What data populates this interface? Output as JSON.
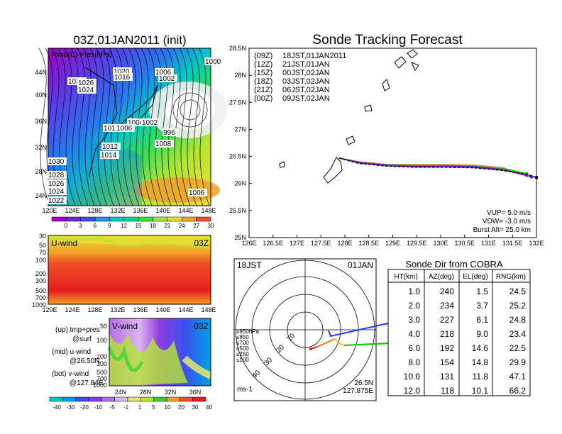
{
  "init_panel": {
    "title": "03Z,01JAN2011 (init)",
    "field_label": "Temp(C)-Pres(hPa)",
    "lat_labels": [
      "44N",
      "40N",
      "36N",
      "32N",
      "28N",
      "24N"
    ],
    "lon_labels": [
      "120E",
      "124E",
      "128E",
      "132E",
      "136E",
      "140E",
      "144E",
      "148E"
    ],
    "isobar_labels": [
      "1020",
      "1016",
      "1030",
      "1026",
      "1024",
      "1006",
      "1002",
      "1000",
      "1004",
      "1002",
      "1010",
      "1006",
      "1012",
      "996",
      "1008",
      "1014",
      "1030",
      "1028",
      "1026",
      "1024",
      "1022",
      "1006"
    ],
    "colorbar": [
      "0",
      "3",
      "6",
      "9",
      "12",
      "15",
      "18",
      "21",
      "24",
      "27",
      "30"
    ],
    "temp_colors": [
      "#a000c8",
      "#6e28dc",
      "#3c50f0",
      "#1e96f0",
      "#00c8c8",
      "#00dc8c",
      "#32e632",
      "#a0e632",
      "#e6dc32",
      "#f0a028",
      "#f05028"
    ]
  },
  "uwind_panel": {
    "title": "U-wind",
    "time": "03Z",
    "pres_labels": [
      "30",
      "50",
      "70",
      "100",
      "200",
      "300",
      "500",
      "700",
      "1000"
    ],
    "lon_labels": [
      "120E",
      "124E",
      "128E",
      "132E",
      "136E",
      "140E",
      "144E",
      "148E"
    ]
  },
  "vwind_panel": {
    "title": "V-wind",
    "time": "03Z",
    "pres_labels": [
      "50",
      "100",
      "200",
      "300",
      "500",
      "700",
      "1000"
    ],
    "lat_labels": [
      "24N",
      "28N",
      "32N",
      "36N"
    ]
  },
  "legend_notes": {
    "up": "(up) tmp+pres",
    "up2": "@surf",
    "mid": "(mid) u-wind",
    "mid2": "@26.50N",
    "bot": "(bot) v-wind",
    "bot2": "@127.84E"
  },
  "wind_colorbar": [
    "-40",
    "-30",
    "-20",
    "-10",
    "-5",
    "-1",
    "1",
    "5",
    "10",
    "20",
    "30",
    "40"
  ],
  "wind_colors": [
    "#00c8c8",
    "#00a0e6",
    "#3c50f0",
    "#8c3cdc",
    "#b46ee6",
    "#dcb4f0",
    "#e6e66e",
    "#b4e632",
    "#32d232",
    "#f0a028",
    "#f05028",
    "#e61e1e"
  ],
  "track_panel": {
    "title": "Sonde Tracking Forecast",
    "lat_labels": [
      "28.5N",
      "28N",
      "27.5N",
      "27N",
      "26.5N",
      "26N",
      "25.5N",
      "25N"
    ],
    "lon_labels": [
      "126E",
      "126.5E",
      "127E",
      "127.5E",
      "128E",
      "128.5E",
      "129E",
      "129.5E",
      "130E",
      "130.5E",
      "131E",
      "131.5E",
      "132E"
    ],
    "runs": [
      {
        "code": "(09Z)",
        "label": "18JST,01JAN2011",
        "color": "#000000"
      },
      {
        "code": "(12Z)",
        "label": "21JST,01JAN",
        "color": "#a000c8"
      },
      {
        "code": "(15Z)",
        "label": "00JST,02JAN",
        "color": "#1e3cff"
      },
      {
        "code": "(18Z)",
        "label": "03JST,02JAN",
        "color": "#00c800"
      },
      {
        "code": "(21Z)",
        "label": "06JST,02JAN",
        "color": "#e6a032"
      },
      {
        "code": "(00Z)",
        "label": "09JST,02JAN",
        "color": "#f07814"
      }
    ],
    "vup": "VUP=  5.0  m/s",
    "vdw": "VDW= -3.0  m/s",
    "burst": "Burst Alt= 25.0  km"
  },
  "polar_panel": {
    "time_left": "18JST",
    "date_right": "01JAN",
    "ring_labels": [
      "10",
      "20",
      "30",
      "40"
    ],
    "height_legend": [
      {
        "label": "≥850hPa",
        "color": "#e61e1e"
      },
      {
        "label": "≤850",
        "color": "#f07814"
      },
      {
        "label": "≤700",
        "color": "#e6c832"
      },
      {
        "label": "≤500",
        "color": "#00c800"
      },
      {
        "label": "≤250",
        "color": "#00c8c8"
      },
      {
        "label": "≤100",
        "color": "#1e3cff"
      }
    ],
    "units": "ms-1",
    "pos_lat": "26.5N",
    "pos_lon": "127.875E"
  },
  "sonde_table": {
    "title": "Sonde Dir from COBRA",
    "headers": [
      "HT(km)",
      "AZ(deg)",
      "EL(deg)",
      "RNG(km)"
    ],
    "rows": [
      [
        "1.0",
        "240",
        "1.5",
        "24.5"
      ],
      [
        "2.0",
        "234",
        "3.7",
        "25.2"
      ],
      [
        "3.0",
        "227",
        "6.1",
        "24.8"
      ],
      [
        "4.0",
        "218",
        "9.0",
        "23.4"
      ],
      [
        "6.0",
        "192",
        "14.6",
        "22.5"
      ],
      [
        "8.0",
        "154",
        "14.8",
        "29.9"
      ],
      [
        "10.0",
        "131",
        "11.8",
        "47.1"
      ],
      [
        "12.0",
        "118",
        "10.1",
        "66.2"
      ]
    ]
  },
  "chart_data": [
    {
      "type": "line",
      "title": "Sonde Tracking Forecast",
      "xlabel": "",
      "ylabel": "",
      "xlim": [
        126.0,
        132.0
      ],
      "ylim": [
        25.0,
        28.5
      ],
      "series": [
        {
          "name": "(09Z) 18JST,01JAN2011",
          "x": [
            127.88,
            128.3,
            128.9,
            129.5,
            130.1,
            130.7,
            131.3,
            131.8,
            132.0
          ],
          "y": [
            26.47,
            26.37,
            26.32,
            26.3,
            26.3,
            26.29,
            26.24,
            26.17,
            26.11
          ]
        },
        {
          "name": "(12Z) 21JST,01JAN",
          "x": [
            127.88,
            128.3,
            128.9,
            129.5,
            130.1,
            130.7,
            131.3,
            131.8
          ],
          "y": [
            26.47,
            26.38,
            26.33,
            26.31,
            26.31,
            26.3,
            26.25,
            26.15
          ]
        },
        {
          "name": "(15Z) 00JST,02JAN",
          "x": [
            127.88,
            128.3,
            128.9,
            129.5,
            130.1,
            130.7,
            131.3,
            131.9
          ],
          "y": [
            26.47,
            26.39,
            26.34,
            26.32,
            26.32,
            26.31,
            26.26,
            26.12
          ]
        },
        {
          "name": "(18Z) 03JST,02JAN",
          "x": [
            127.88,
            128.3,
            128.9,
            129.5,
            130.1,
            130.7,
            131.3,
            131.5,
            131.8
          ],
          "y": [
            26.47,
            26.39,
            26.34,
            26.33,
            26.33,
            26.32,
            26.27,
            26.24,
            26.18
          ]
        },
        {
          "name": "(21Z) 06JST,02JAN",
          "x": [
            127.88,
            128.3,
            128.9,
            129.5,
            130.1,
            130.7,
            131.3,
            131.7
          ],
          "y": [
            26.47,
            26.39,
            26.35,
            26.34,
            26.34,
            26.33,
            26.28,
            26.18
          ]
        },
        {
          "name": "(00Z) 09JST,02JAN",
          "x": [
            127.88,
            128.3,
            128.9,
            129.5,
            130.1,
            130.7,
            131.3,
            131.9
          ],
          "y": [
            26.47,
            26.4,
            26.35,
            26.35,
            26.35,
            26.34,
            26.29,
            26.12
          ]
        }
      ]
    },
    {
      "type": "table",
      "title": "Sonde Dir from COBRA",
      "columns": [
        "HT(km)",
        "AZ(deg)",
        "EL(deg)",
        "RNG(km)"
      ],
      "rows": [
        [
          1.0,
          240,
          1.5,
          24.5
        ],
        [
          2.0,
          234,
          3.7,
          25.2
        ],
        [
          3.0,
          227,
          6.1,
          24.8
        ],
        [
          4.0,
          218,
          9.0,
          23.4
        ],
        [
          6.0,
          192,
          14.6,
          22.5
        ],
        [
          8.0,
          154,
          14.8,
          29.9
        ],
        [
          10.0,
          131,
          11.8,
          47.1
        ],
        [
          12.0,
          118,
          10.1,
          66.2
        ]
      ]
    }
  ]
}
